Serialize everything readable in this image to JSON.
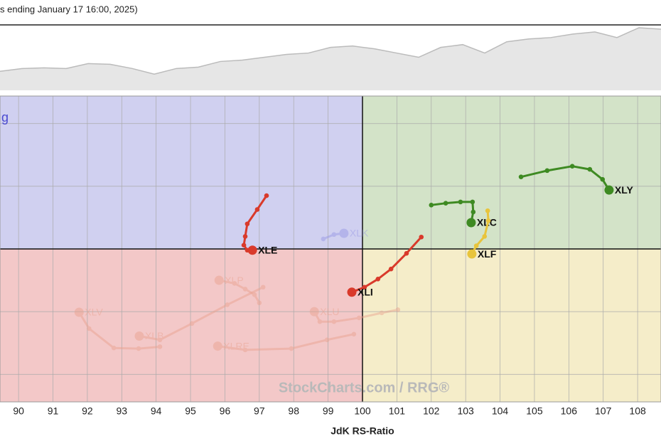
{
  "chart_data": {
    "type": "rrg",
    "title": "s ending January 17 16:00, 2025)",
    "quadrant_label": "g",
    "watermark": "StockCharts.com / RRG®",
    "x_label": "JdK RS-Ratio",
    "overview": {
      "values": [
        25,
        29,
        30,
        29,
        36,
        35,
        29,
        21,
        29,
        31,
        39,
        41,
        45,
        49,
        51,
        59,
        61,
        57,
        51,
        45,
        59,
        63,
        51,
        67,
        71,
        73,
        78,
        81,
        73,
        87,
        85
      ],
      "ylim": [
        0,
        90
      ],
      "color": "#e6e6e6",
      "line_color": "#bbbbbb"
    },
    "xlim": [
      89.46,
      108.68
    ],
    "ylim": [
      97.56,
      102.44
    ],
    "xticks": [
      90,
      91,
      92,
      93,
      94,
      95,
      96,
      97,
      98,
      99,
      100,
      101,
      102,
      103,
      104,
      105,
      106,
      107,
      108
    ],
    "yticks": [
      98,
      99,
      100,
      101,
      102
    ],
    "center": [
      100,
      100
    ],
    "quadrant_colors": {
      "leading": "#d3e3c8",
      "weakening": "#f5edc9",
      "lagging": "#f3c8c8",
      "improving": "#d0d0f0"
    },
    "series": [
      {
        "name": "XLV",
        "color": "#e9a08c",
        "opacity": 0.45,
        "x": [
          94.11,
          93.49,
          92.77,
          92.05,
          91.76
        ],
        "values": [
          98.44,
          98.41,
          98.42,
          98.73,
          98.99
        ]
      },
      {
        "name": "XLB",
        "color": "#e9a08c",
        "opacity": 0.45,
        "x": [
          97.11,
          96.07,
          95.04,
          94.11,
          93.51
        ],
        "values": [
          99.39,
          99.11,
          98.81,
          98.55,
          98.61
        ]
      },
      {
        "name": "XLU",
        "color": "#e9a08c",
        "opacity": 0.45,
        "x": [
          101.03,
          100.56,
          99.9,
          99.17,
          98.76,
          98.6
        ],
        "values": [
          99.03,
          98.98,
          98.9,
          98.84,
          98.84,
          99.0
        ]
      },
      {
        "name": "XLRE",
        "color": "#e9a08c",
        "opacity": 0.45,
        "x": [
          99.75,
          98.97,
          97.93,
          96.59,
          95.79
        ],
        "values": [
          98.64,
          98.55,
          98.41,
          98.39,
          98.45
        ]
      },
      {
        "name": "XLP",
        "color": "#e9a08c",
        "opacity": 0.45,
        "x": [
          97.0,
          96.86,
          96.59,
          96.28,
          95.83
        ],
        "values": [
          99.14,
          99.27,
          99.36,
          99.45,
          99.5
        ]
      },
      {
        "name": "XLK",
        "color": "#9a9ae6",
        "opacity": 0.5,
        "x": [
          98.86,
          99.17,
          99.46
        ],
        "values": [
          100.16,
          100.23,
          100.25
        ]
      },
      {
        "name": "XLE",
        "color": "#d93a2b",
        "opacity": 1,
        "x": [
          97.21,
          96.94,
          96.65,
          96.59,
          96.55,
          96.65,
          96.8
        ],
        "values": [
          100.85,
          100.63,
          100.4,
          100.2,
          100.06,
          99.98,
          99.98
        ]
      },
      {
        "name": "XLI",
        "color": "#d93a2b",
        "opacity": 1,
        "x": [
          101.71,
          101.28,
          100.83,
          100.45,
          100.06,
          99.69
        ],
        "values": [
          100.19,
          99.93,
          99.68,
          99.52,
          99.39,
          99.31
        ]
      },
      {
        "name": "XLY",
        "color": "#3e8a22",
        "opacity": 1,
        "x": [
          104.61,
          105.37,
          106.1,
          106.61,
          106.98,
          107.17
        ],
        "values": [
          101.15,
          101.25,
          101.32,
          101.27,
          101.11,
          100.94
        ]
      },
      {
        "name": "XLC",
        "color": "#3e8a22",
        "opacity": 1,
        "x": [
          102.0,
          102.42,
          102.85,
          103.2,
          103.22,
          103.16
        ],
        "values": [
          100.7,
          100.73,
          100.75,
          100.75,
          100.59,
          100.42
        ]
      },
      {
        "name": "XLF",
        "color": "#e8c43c",
        "opacity": 1,
        "x": [
          103.64,
          103.66,
          103.55,
          103.31,
          103.18
        ],
        "values": [
          100.61,
          100.45,
          100.2,
          100.05,
          99.92
        ]
      }
    ]
  }
}
